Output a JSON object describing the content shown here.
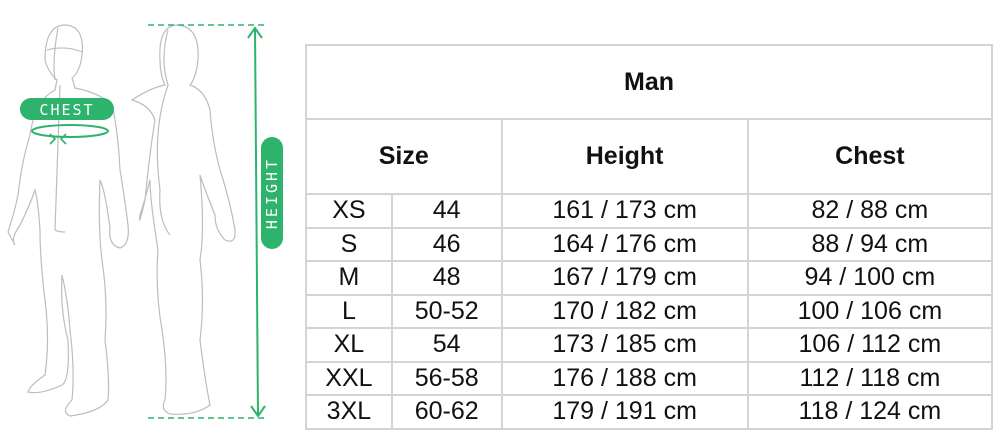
{
  "figure": {
    "chest_label": "CHEST",
    "height_label": "HEIGHT",
    "accent_color": "#2db36b"
  },
  "table": {
    "title": "Man",
    "headers": {
      "size": "Size",
      "height": "Height",
      "chest": "Chest"
    },
    "rows": [
      {
        "size": "XS",
        "eu": "44",
        "height": "161 / 173 cm",
        "chest": "82 / 88 cm"
      },
      {
        "size": "S",
        "eu": "46",
        "height": "164 / 176 cm",
        "chest": "88 / 94 cm"
      },
      {
        "size": "M",
        "eu": "48",
        "height": "167 / 179 cm",
        "chest": "94 / 100 cm"
      },
      {
        "size": "L",
        "eu": "50-52",
        "height": "170 / 182 cm",
        "chest": "100 / 106 cm"
      },
      {
        "size": "XL",
        "eu": "54",
        "height": "173 / 185 cm",
        "chest": "106 / 112 cm"
      },
      {
        "size": "XXL",
        "eu": "56-58",
        "height": "176 / 188 cm",
        "chest": "112 / 118 cm"
      },
      {
        "size": "3XL",
        "eu": "60-62",
        "height": "179 / 191 cm",
        "chest": "118 / 124 cm"
      }
    ]
  }
}
